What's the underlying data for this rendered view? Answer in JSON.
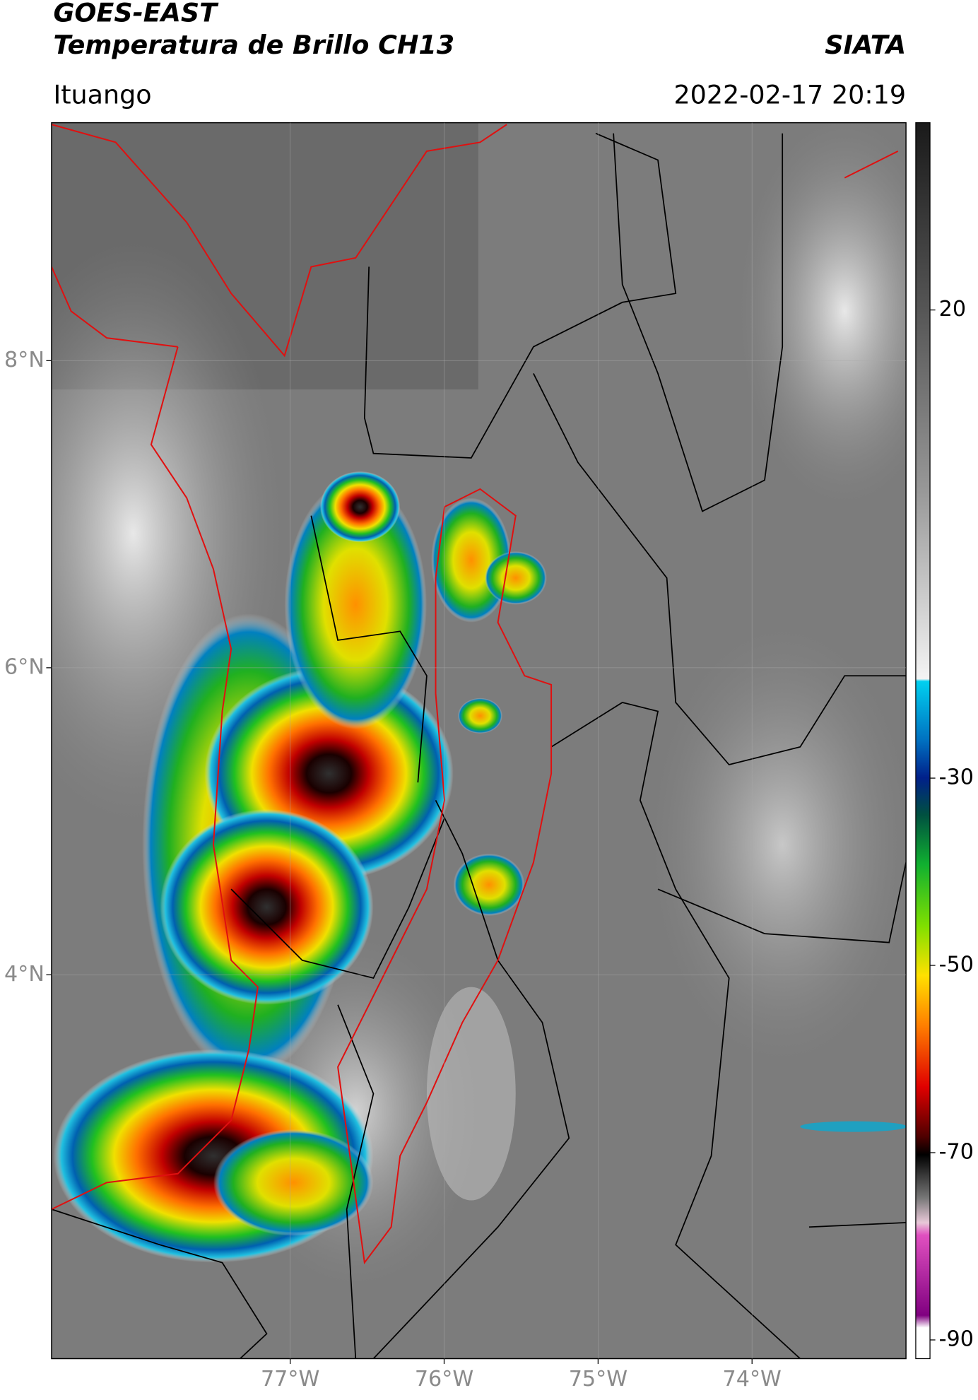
{
  "header": {
    "title": "GOES-EAST",
    "subtitle": "Temperatura de Brillo CH13",
    "source": "SIATA",
    "location": "Ituango",
    "datetime": "2022-02-17 20:19"
  },
  "map": {
    "xlim": [
      -78.55,
      -73.0
    ],
    "ylim": [
      1.5,
      9.55
    ],
    "xticks": [
      {
        "value": -77,
        "label": "77°W"
      },
      {
        "value": -76,
        "label": "76°W"
      },
      {
        "value": -75,
        "label": "75°W"
      },
      {
        "value": -74,
        "label": "74°W"
      }
    ],
    "yticks": [
      {
        "value": 8,
        "label": "8°N"
      },
      {
        "value": 6,
        "label": "6°N"
      },
      {
        "value": 4,
        "label": "4°N"
      }
    ],
    "grid": true,
    "colorbar": {
      "lim": [
        -92,
        40
      ],
      "ticks": [
        20,
        -30,
        -50,
        -70,
        -90
      ]
    }
  }
}
